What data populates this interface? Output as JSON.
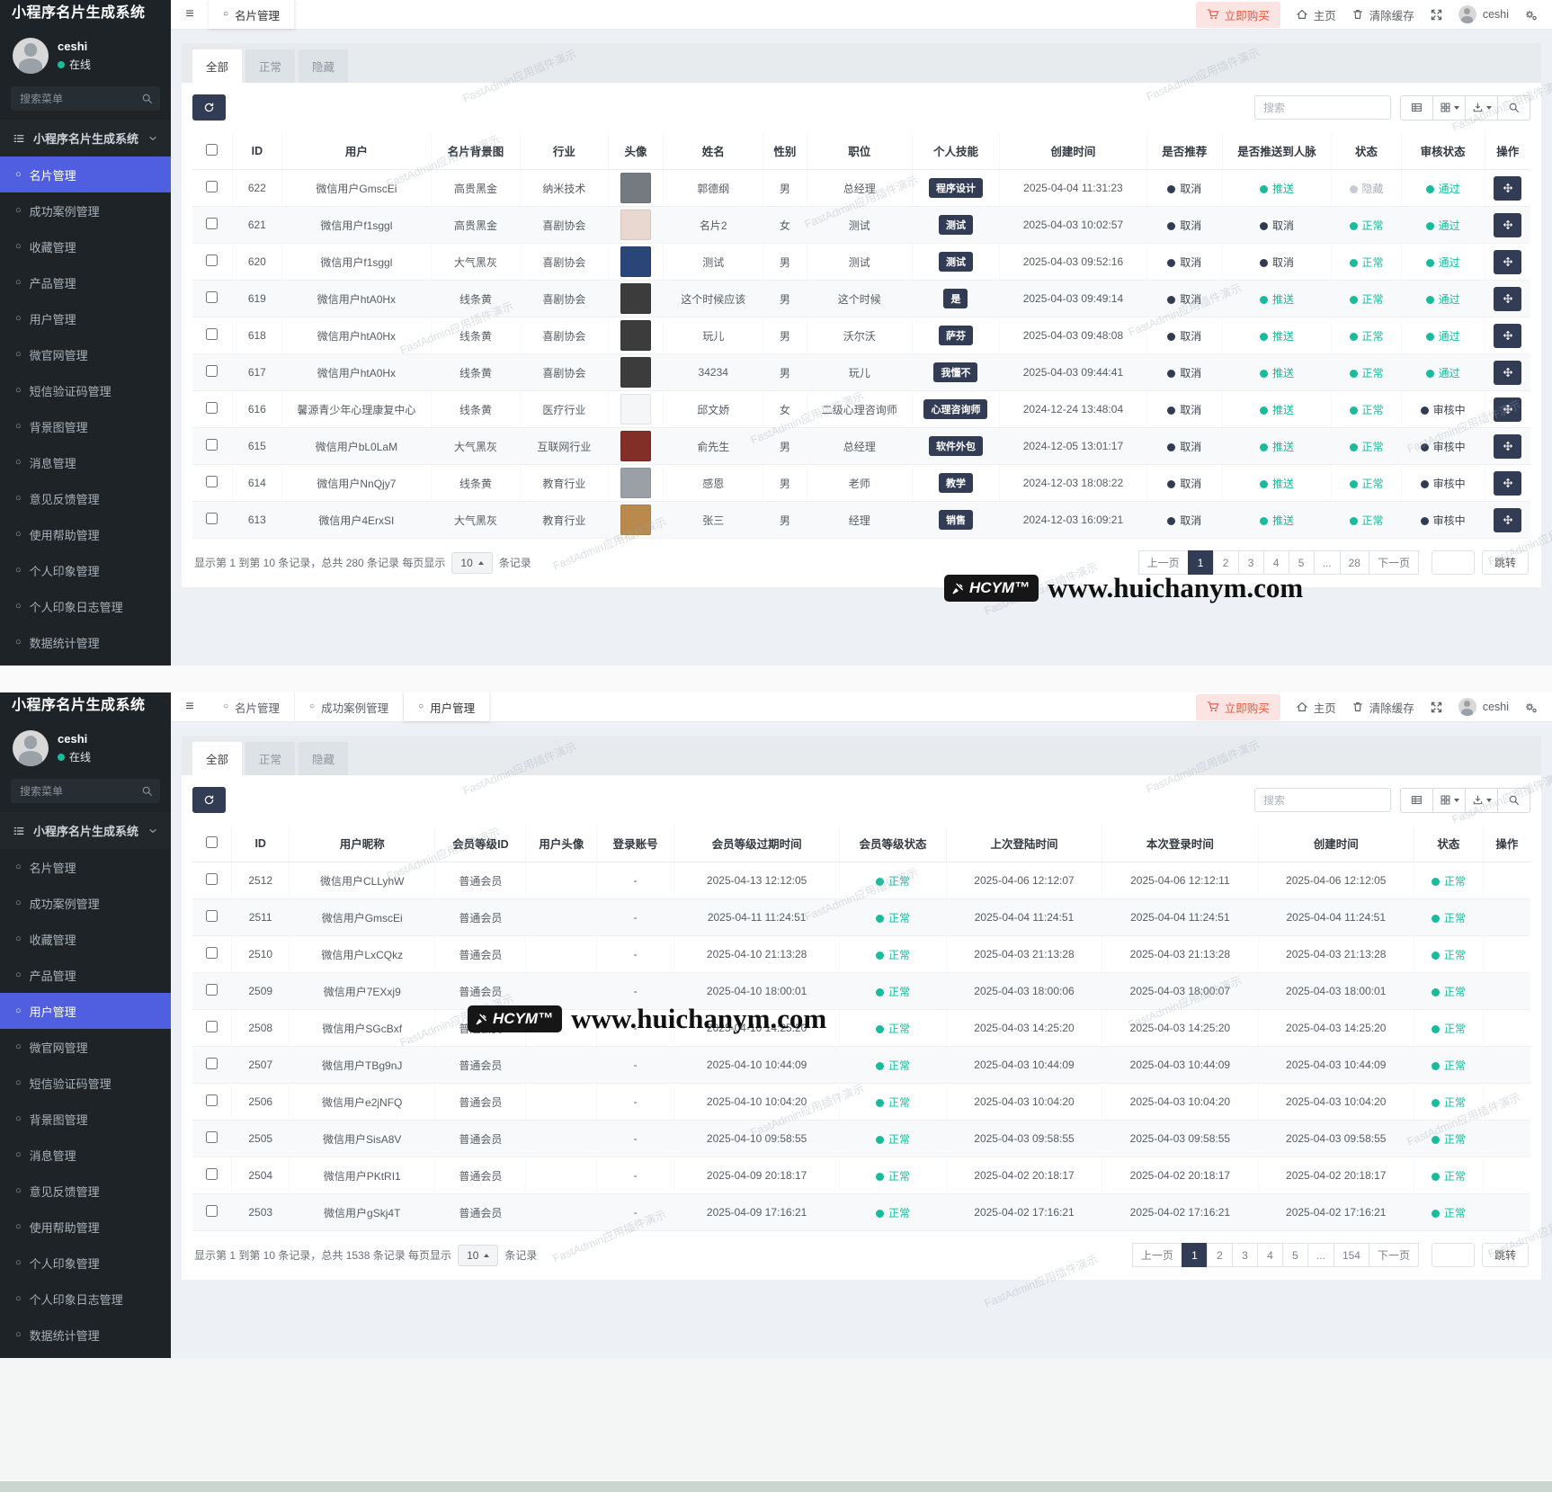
{
  "site": {
    "buy_label": "立即购买",
    "home_label": "主页",
    "clear_cache_label": "清除缓存",
    "username": "ceshi"
  },
  "watermark": {
    "badge": "HCYM™",
    "site": "www.huichanym.com",
    "tile": "FastAdmin应用插件演示"
  },
  "sidebar": {
    "title": "小程序名片生成系统",
    "user_name": "ceshi",
    "user_status": "在线",
    "search_placeholder": "搜索菜单",
    "group_label": "小程序名片生成系统",
    "items": [
      "名片管理",
      "成功案例管理",
      "收藏管理",
      "产品管理",
      "用户管理",
      "微官网管理",
      "短信验证码管理",
      "背景图管理",
      "消息管理",
      "意见反馈管理",
      "使用帮助管理",
      "个人印象管理",
      "个人印象日志管理",
      "数据统计管理"
    ]
  },
  "screens": [
    {
      "active_item": 0,
      "search_placeholder": "搜索",
      "nav_tabs": [
        {
          "label": "名片管理",
          "active": true
        }
      ],
      "filter_tabs": [
        {
          "label": "全部",
          "active": true
        },
        {
          "label": "正常",
          "active": false
        },
        {
          "label": "隐藏",
          "active": false
        }
      ],
      "table": {
        "columns": [
          {
            "type": "check",
            "label": ""
          },
          {
            "key": "id",
            "label": "ID"
          },
          {
            "key": "user",
            "label": "用户"
          },
          {
            "key": "bg",
            "label": "名片背景图"
          },
          {
            "key": "industry",
            "label": "行业"
          },
          {
            "key": "avatar",
            "label": "头像",
            "type": "avatar"
          },
          {
            "key": "name",
            "label": "姓名"
          },
          {
            "key": "gender",
            "label": "性别"
          },
          {
            "key": "job",
            "label": "职位"
          },
          {
            "key": "skill",
            "label": "个人技能",
            "type": "badge"
          },
          {
            "key": "created",
            "label": "创建时间"
          },
          {
            "key": "recommend",
            "label": "是否推荐",
            "type": "dot"
          },
          {
            "key": "push",
            "label": "是否推送到人脉",
            "type": "dot"
          },
          {
            "key": "status",
            "label": "状态",
            "type": "dot"
          },
          {
            "key": "audit",
            "label": "审核状态",
            "type": "dot"
          },
          {
            "type": "op",
            "label": "操作"
          }
        ],
        "rows": [
          {
            "op": true,
            "id": "622",
            "user": "微信用户GmscEi",
            "bg": "高贵黑金",
            "industry": "纳米技术",
            "avatar": "#757a80",
            "name": "郭德纲",
            "gender": "男",
            "job": "总经理",
            "skill": "程序设计",
            "created": "2025-04-04 11:31:23",
            "recommend": {
              "t": "取消",
              "c": "dark"
            },
            "push": {
              "t": "推送",
              "c": "green"
            },
            "status": {
              "t": "隐藏",
              "c": "gray"
            },
            "audit": {
              "t": "通过",
              "c": "green"
            }
          },
          {
            "op": true,
            "id": "621",
            "user": "微信用户f1sggl",
            "bg": "高贵黑金",
            "industry": "喜剧协会",
            "avatar": "#e8d8d0",
            "name": "名片2",
            "gender": "女",
            "job": "测试",
            "skill": "测试",
            "created": "2025-04-03 10:02:57",
            "recommend": {
              "t": "取消",
              "c": "dark"
            },
            "push": {
              "t": "取消",
              "c": "dark"
            },
            "status": {
              "t": "正常",
              "c": "green"
            },
            "audit": {
              "t": "通过",
              "c": "green"
            }
          },
          {
            "op": true,
            "id": "620",
            "user": "微信用户f1sggl",
            "bg": "大气黑灰",
            "industry": "喜剧协会",
            "avatar": "#2a4578",
            "name": "测试",
            "gender": "男",
            "job": "测试",
            "skill": "测试",
            "created": "2025-04-03 09:52:16",
            "recommend": {
              "t": "取消",
              "c": "dark"
            },
            "push": {
              "t": "取消",
              "c": "dark"
            },
            "status": {
              "t": "正常",
              "c": "green"
            },
            "audit": {
              "t": "通过",
              "c": "green"
            }
          },
          {
            "op": true,
            "id": "619",
            "user": "微信用户htA0Hx",
            "bg": "线条黄",
            "industry": "喜剧协会",
            "avatar": "#3c3c3c",
            "name": "这个时候应该",
            "gender": "男",
            "job": "这个时候",
            "skill": "是",
            "created": "2025-04-03 09:49:14",
            "recommend": {
              "t": "取消",
              "c": "dark"
            },
            "push": {
              "t": "推送",
              "c": "green"
            },
            "status": {
              "t": "正常",
              "c": "green"
            },
            "audit": {
              "t": "通过",
              "c": "green"
            }
          },
          {
            "op": true,
            "id": "618",
            "user": "微信用户htA0Hx",
            "bg": "线条黄",
            "industry": "喜剧协会",
            "avatar": "#3c3c3c",
            "name": "玩儿",
            "gender": "男",
            "job": "沃尔沃",
            "skill": "萨芬",
            "created": "2025-04-03 09:48:08",
            "recommend": {
              "t": "取消",
              "c": "dark"
            },
            "push": {
              "t": "推送",
              "c": "green"
            },
            "status": {
              "t": "正常",
              "c": "green"
            },
            "audit": {
              "t": "通过",
              "c": "green"
            }
          },
          {
            "op": true,
            "id": "617",
            "user": "微信用户htA0Hx",
            "bg": "线条黄",
            "industry": "喜剧协会",
            "avatar": "#3c3c3c",
            "name": "34234",
            "gender": "男",
            "job": "玩儿",
            "skill": "我懂不",
            "created": "2025-04-03 09:44:41",
            "recommend": {
              "t": "取消",
              "c": "dark"
            },
            "push": {
              "t": "推送",
              "c": "green"
            },
            "status": {
              "t": "正常",
              "c": "green"
            },
            "audit": {
              "t": "通过",
              "c": "green"
            }
          },
          {
            "op": true,
            "id": "616",
            "user": "馨源青少年心理康复中心",
            "bg": "线条黄",
            "industry": "医疗行业",
            "avatar": "#f4f6f8",
            "name": "邱文娇",
            "gender": "女",
            "job": "二级心理咨询师",
            "skill": "心理咨询师",
            "created": "2024-12-24 13:48:04",
            "recommend": {
              "t": "取消",
              "c": "dark"
            },
            "push": {
              "t": "推送",
              "c": "green"
            },
            "status": {
              "t": "正常",
              "c": "green"
            },
            "audit": {
              "t": "审核中",
              "c": "dark"
            }
          },
          {
            "op": true,
            "id": "615",
            "user": "微信用户bL0LaM",
            "bg": "大气黑灰",
            "industry": "互联网行业",
            "avatar": "#822f28",
            "name": "俞先生",
            "gender": "男",
            "job": "总经理",
            "skill": "软件外包",
            "created": "2024-12-05 13:01:17",
            "recommend": {
              "t": "取消",
              "c": "dark"
            },
            "push": {
              "t": "推送",
              "c": "green"
            },
            "status": {
              "t": "正常",
              "c": "green"
            },
            "audit": {
              "t": "审核中",
              "c": "dark"
            }
          },
          {
            "op": true,
            "id": "614",
            "user": "微信用户NnQjy7",
            "bg": "线条黄",
            "industry": "教育行业",
            "avatar": "#9aa0a6",
            "name": "感恩",
            "gender": "男",
            "job": "老师",
            "skill": "教学",
            "created": "2024-12-03 18:08:22",
            "recommend": {
              "t": "取消",
              "c": "dark"
            },
            "push": {
              "t": "推送",
              "c": "green"
            },
            "status": {
              "t": "正常",
              "c": "green"
            },
            "audit": {
              "t": "审核中",
              "c": "dark"
            }
          },
          {
            "op": true,
            "id": "613",
            "user": "微信用户4ErxSI",
            "bg": "大气黑灰",
            "industry": "教育行业",
            "avatar": "#b9894e",
            "name": "张三",
            "gender": "男",
            "job": "经理",
            "skill": "销售",
            "created": "2024-12-03 16:09:21",
            "recommend": {
              "t": "取消",
              "c": "dark"
            },
            "push": {
              "t": "推送",
              "c": "green"
            },
            "status": {
              "t": "正常",
              "c": "green"
            },
            "audit": {
              "t": "审核中",
              "c": "dark"
            }
          }
        ]
      },
      "footer": {
        "summary": "显示第 1 到第 10 条记录，总共 280 条记录 每页显示",
        "per_page": "10",
        "suffix": "条记录",
        "pages": [
          "上一页",
          "1",
          "2",
          "3",
          "4",
          "5",
          "...",
          "28",
          "下一页"
        ],
        "active_page": "1",
        "jump_label": "跳转"
      }
    },
    {
      "active_item": 4,
      "search_placeholder": "搜索",
      "nav_tabs": [
        {
          "label": "名片管理",
          "active": false
        },
        {
          "label": "成功案例管理",
          "active": false
        },
        {
          "label": "用户管理",
          "active": true
        }
      ],
      "filter_tabs": [
        {
          "label": "全部",
          "active": true
        },
        {
          "label": "正常",
          "active": false
        },
        {
          "label": "隐藏",
          "active": false
        }
      ],
      "table": {
        "columns": [
          {
            "type": "check",
            "label": ""
          },
          {
            "key": "id",
            "label": "ID"
          },
          {
            "key": "nick",
            "label": "用户昵称"
          },
          {
            "key": "level",
            "label": "会员等级ID"
          },
          {
            "key": "avatar",
            "label": "用户头像",
            "type": "avatar"
          },
          {
            "key": "account",
            "label": "登录账号"
          },
          {
            "key": "expire",
            "label": "会员等级过期时间"
          },
          {
            "key": "level_status",
            "label": "会员等级状态",
            "type": "dot"
          },
          {
            "key": "last_login",
            "label": "上次登陆时间"
          },
          {
            "key": "this_login",
            "label": "本次登录时间"
          },
          {
            "key": "created",
            "label": "创建时间"
          },
          {
            "key": "status",
            "label": "状态",
            "type": "dot"
          },
          {
            "type": "op",
            "label": "操作"
          }
        ],
        "rows": [
          {
            "op": false,
            "id": "2512",
            "nick": "微信用户CLLyhW",
            "level": "普通会员",
            "avatar": "",
            "account": "-",
            "expire": "2025-04-13 12:12:05",
            "level_status": {
              "t": "正常",
              "c": "green"
            },
            "last_login": "2025-04-06 12:12:07",
            "this_login": "2025-04-06 12:12:11",
            "created": "2025-04-06 12:12:05",
            "status": {
              "t": "正常",
              "c": "green"
            }
          },
          {
            "op": false,
            "id": "2511",
            "nick": "微信用户GmscEi",
            "level": "普通会员",
            "avatar": "",
            "account": "-",
            "expire": "2025-04-11 11:24:51",
            "level_status": {
              "t": "正常",
              "c": "green"
            },
            "last_login": "2025-04-04 11:24:51",
            "this_login": "2025-04-04 11:24:51",
            "created": "2025-04-04 11:24:51",
            "status": {
              "t": "正常",
              "c": "green"
            }
          },
          {
            "op": false,
            "id": "2510",
            "nick": "微信用户LxCQkz",
            "level": "普通会员",
            "avatar": "",
            "account": "-",
            "expire": "2025-04-10 21:13:28",
            "level_status": {
              "t": "正常",
              "c": "green"
            },
            "last_login": "2025-04-03 21:13:28",
            "this_login": "2025-04-03 21:13:28",
            "created": "2025-04-03 21:13:28",
            "status": {
              "t": "正常",
              "c": "green"
            }
          },
          {
            "op": false,
            "id": "2509",
            "nick": "微信用户7EXxj9",
            "level": "普通会员",
            "avatar": "",
            "account": "-",
            "expire": "2025-04-10 18:00:01",
            "level_status": {
              "t": "正常",
              "c": "green"
            },
            "last_login": "2025-04-03 18:00:06",
            "this_login": "2025-04-03 18:00:07",
            "created": "2025-04-03 18:00:01",
            "status": {
              "t": "正常",
              "c": "green"
            }
          },
          {
            "op": false,
            "id": "2508",
            "nick": "微信用户SGcBxf",
            "level": "普通会员",
            "avatar": "",
            "account": "-",
            "expire": "2025-04-10 14:25:20",
            "level_status": {
              "t": "正常",
              "c": "green"
            },
            "last_login": "2025-04-03 14:25:20",
            "this_login": "2025-04-03 14:25:20",
            "created": "2025-04-03 14:25:20",
            "status": {
              "t": "正常",
              "c": "green"
            }
          },
          {
            "op": false,
            "id": "2507",
            "nick": "微信用户TBg9nJ",
            "level": "普通会员",
            "avatar": "",
            "account": "-",
            "expire": "2025-04-10 10:44:09",
            "level_status": {
              "t": "正常",
              "c": "green"
            },
            "last_login": "2025-04-03 10:44:09",
            "this_login": "2025-04-03 10:44:09",
            "created": "2025-04-03 10:44:09",
            "status": {
              "t": "正常",
              "c": "green"
            }
          },
          {
            "op": false,
            "id": "2506",
            "nick": "微信用户e2jNFQ",
            "level": "普通会员",
            "avatar": "",
            "account": "-",
            "expire": "2025-04-10 10:04:20",
            "level_status": {
              "t": "正常",
              "c": "green"
            },
            "last_login": "2025-04-03 10:04:20",
            "this_login": "2025-04-03 10:04:20",
            "created": "2025-04-03 10:04:20",
            "status": {
              "t": "正常",
              "c": "green"
            }
          },
          {
            "op": false,
            "id": "2505",
            "nick": "微信用户SisA8V",
            "level": "普通会员",
            "avatar": "",
            "account": "-",
            "expire": "2025-04-10 09:58:55",
            "level_status": {
              "t": "正常",
              "c": "green"
            },
            "last_login": "2025-04-03 09:58:55",
            "this_login": "2025-04-03 09:58:55",
            "created": "2025-04-03 09:58:55",
            "status": {
              "t": "正常",
              "c": "green"
            }
          },
          {
            "op": false,
            "id": "2504",
            "nick": "微信用户PKtRI1",
            "level": "普通会员",
            "avatar": "",
            "account": "-",
            "expire": "2025-04-09 20:18:17",
            "level_status": {
              "t": "正常",
              "c": "green"
            },
            "last_login": "2025-04-02 20:18:17",
            "this_login": "2025-04-02 20:18:17",
            "created": "2025-04-02 20:18:17",
            "status": {
              "t": "正常",
              "c": "green"
            }
          },
          {
            "op": false,
            "id": "2503",
            "nick": "微信用户gSkj4T",
            "level": "普通会员",
            "avatar": "",
            "account": "-",
            "expire": "2025-04-09 17:16:21",
            "level_status": {
              "t": "正常",
              "c": "green"
            },
            "last_login": "2025-04-02 17:16:21",
            "this_login": "2025-04-02 17:16:21",
            "created": "2025-04-02 17:16:21",
            "status": {
              "t": "正常",
              "c": "green"
            }
          }
        ]
      },
      "footer": {
        "summary": "显示第 1 到第 10 条记录，总共 1538 条记录 每页显示",
        "per_page": "10",
        "suffix": "条记录",
        "pages": [
          "上一页",
          "1",
          "2",
          "3",
          "4",
          "5",
          "...",
          "154",
          "下一页"
        ],
        "active_page": "1",
        "jump_label": "跳转"
      }
    }
  ]
}
